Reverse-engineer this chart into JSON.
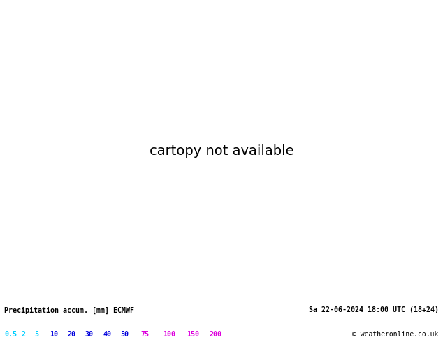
{
  "title_left": "Precipitation accum. [mm] ECMWF",
  "title_right": "Sa 22-06-2024 18:00 UTC (18+24)",
  "copyright": "© weatheronline.co.uk",
  "colorbar_labels": [
    "0.5",
    "2",
    "5",
    "10",
    "20",
    "30",
    "40",
    "50",
    "75",
    "100",
    "150",
    "200"
  ],
  "colorbar_text_colors": [
    "#00cfff",
    "#00cfff",
    "#00cfff",
    "#0000dd",
    "#0000dd",
    "#0000dd",
    "#0000dd",
    "#0000dd",
    "#dd00dd",
    "#dd00dd",
    "#dd00dd",
    "#dd00dd"
  ],
  "bg_color": "#ffffff",
  "ocean_color": "#c8e8f8",
  "land_color_dry": "#d8e8b0",
  "land_color_wet": "#b0d090",
  "bottom_bg": "#ffffff",
  "bottom_text_color": "#000000",
  "fig_width": 6.34,
  "fig_height": 4.9,
  "map_extent": [
    -170,
    -50,
    10,
    80
  ],
  "red_isobar_color": "#dd0000",
  "blue_isobar_color": "#000088"
}
